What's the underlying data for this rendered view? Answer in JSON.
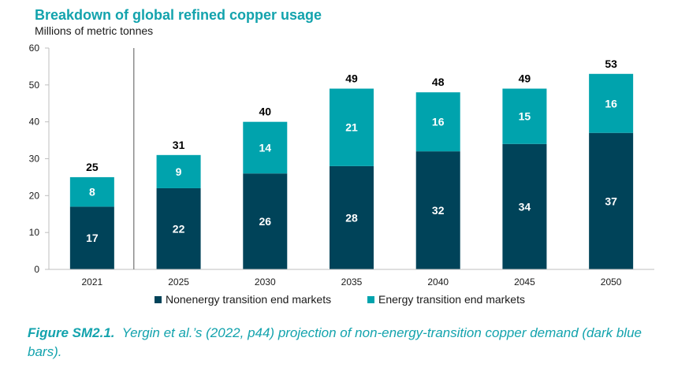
{
  "chart_data": {
    "type": "bar",
    "stacked": true,
    "title": "Breakdown of global refined copper usage",
    "ylabel": "Millions of metric tonnes",
    "xlabel": "",
    "ylim": [
      0,
      60
    ],
    "yticks": [
      0,
      10,
      20,
      30,
      40,
      50,
      60
    ],
    "categories": [
      "2021",
      "2025",
      "2030",
      "2035",
      "2040",
      "2045",
      "2050"
    ],
    "series": [
      {
        "name": "Nonenergy transition end markets",
        "color": "#004359",
        "values": [
          17,
          22,
          26,
          28,
          32,
          34,
          37
        ]
      },
      {
        "name": "Energy transition end markets",
        "color": "#00a3ad",
        "values": [
          8,
          9,
          14,
          21,
          16,
          15,
          16
        ]
      }
    ],
    "totals": [
      25,
      31,
      40,
      49,
      48,
      49,
      53
    ],
    "legend_position": "bottom"
  },
  "caption": {
    "label": "Figure SM2.1.",
    "text": "Yergin et al.’s (2022, p44) projection of non-energy-transition copper demand (dark blue bars)."
  },
  "colors": {
    "title": "#13a3ad",
    "caption": "#13a3ad",
    "axis": "#bfbfbf",
    "separator": "#8c8c8c"
  }
}
